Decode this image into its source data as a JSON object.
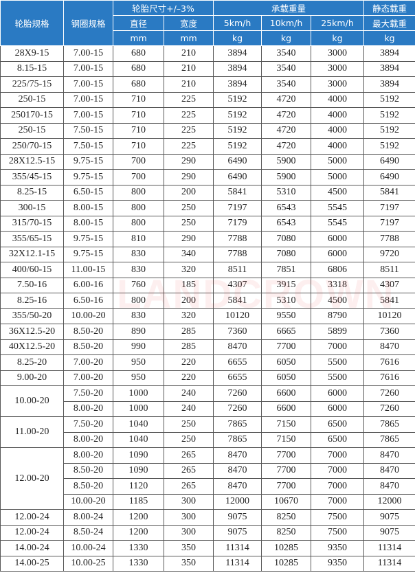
{
  "header": {
    "tire_spec": "轮胎规格",
    "rim_spec": "钢圈规格",
    "tire_size": "轮胎尺寸+/–3%",
    "load_capacity": "承载重量",
    "static_load": "静态载重",
    "diameter": "直径",
    "width": "宽度",
    "speed_5": "5km/h",
    "speed_10": "10km/h",
    "speed_25": "25km/h",
    "max_load": "最大载重",
    "unit_mm_1": "mm",
    "unit_mm_2": "mm",
    "unit_kg_1": "kg",
    "unit_kg_2": "kg",
    "unit_kg_3": "kg",
    "unit_kg_4": "kg"
  },
  "watermark": "LANDCROWN",
  "colors": {
    "header_bg": "#2a7ac3",
    "header_text": "#ffffff"
  },
  "groups": [
    {
      "tire": "28X9-15",
      "variants": [
        [
          "7.00-15",
          "680",
          "210",
          "3894",
          "3540",
          "3000",
          "3894"
        ]
      ]
    },
    {
      "tire": "8.15-15",
      "variants": [
        [
          "7.00-15",
          "680",
          "210",
          "3894",
          "3540",
          "3000",
          "3894"
        ]
      ]
    },
    {
      "tire": "225/75-15",
      "variants": [
        [
          "7.00-15",
          "680",
          "210",
          "3894",
          "3540",
          "3000",
          "3894"
        ]
      ]
    },
    {
      "tire": "250-15",
      "variants": [
        [
          "7.00-15",
          "710",
          "225",
          "5192",
          "4720",
          "4000",
          "5192"
        ]
      ]
    },
    {
      "tire": "250170-15",
      "variants": [
        [
          "7.00-15",
          "710",
          "225",
          "5192",
          "4720",
          "4000",
          "5192"
        ]
      ]
    },
    {
      "tire": "250-15",
      "variants": [
        [
          "7.50-15",
          "710",
          "225",
          "5192",
          "4720",
          "4000",
          "5192"
        ]
      ]
    },
    {
      "tire": "250/70-15",
      "variants": [
        [
          "7.50-15",
          "710",
          "225",
          "5192",
          "4720",
          "4000",
          "5192"
        ]
      ]
    },
    {
      "tire": "28X12.5-15",
      "variants": [
        [
          "9.75-15",
          "700",
          "290",
          "6490",
          "5900",
          "5000",
          "6490"
        ]
      ]
    },
    {
      "tire": "355/45-15",
      "variants": [
        [
          "9.75-15",
          "700",
          "290",
          "6490",
          "5900",
          "5000",
          "6490"
        ]
      ]
    },
    {
      "tire": "8.25-15",
      "variants": [
        [
          "6.50-15",
          "800",
          "200",
          "5841",
          "5310",
          "4500",
          "5841"
        ]
      ]
    },
    {
      "tire": "300-15",
      "variants": [
        [
          "8.00-15",
          "800",
          "250",
          "7197",
          "6543",
          "5545",
          "7197"
        ]
      ]
    },
    {
      "tire": "315/70-15",
      "variants": [
        [
          "8.00-15",
          "800",
          "250",
          "7179",
          "6543",
          "5545",
          "7197"
        ]
      ]
    },
    {
      "tire": "355/65-15",
      "variants": [
        [
          "9.75-15",
          "810",
          "290",
          "7788",
          "7080",
          "6000",
          "7788"
        ]
      ]
    },
    {
      "tire": "32X12.1-15",
      "variants": [
        [
          "9.75-15",
          "830",
          "340",
          "7788",
          "7080",
          "6000",
          "9720"
        ]
      ]
    },
    {
      "tire": "400/60-15",
      "variants": [
        [
          "11.00-15",
          "830",
          "320",
          "8511",
          "7851",
          "6806",
          "8511"
        ]
      ]
    },
    {
      "tire": "7.50-16",
      "variants": [
        [
          "6.00-16",
          "760",
          "185",
          "4307",
          "3915",
          "3318",
          "4307"
        ]
      ]
    },
    {
      "tire": "8.25-16",
      "variants": [
        [
          "6.50-16",
          "800",
          "200",
          "5841",
          "5310",
          "4500",
          "5841"
        ]
      ]
    },
    {
      "tire": "355/50-20",
      "variants": [
        [
          "10.00-20",
          "830",
          "320",
          "10120",
          "9550",
          "8790",
          "10120"
        ]
      ]
    },
    {
      "tire": "36X12.5-20",
      "variants": [
        [
          "8.50-20",
          "890",
          "285",
          "7360",
          "6665",
          "5899",
          "7360"
        ]
      ]
    },
    {
      "tire": "40X12.5-20",
      "variants": [
        [
          "8.50-20",
          "990",
          "285",
          "8470",
          "7700",
          "7000",
          "8470"
        ]
      ]
    },
    {
      "tire": "8.25-20",
      "variants": [
        [
          "7.00-20",
          "950",
          "220",
          "6655",
          "6050",
          "5500",
          "7616"
        ]
      ]
    },
    {
      "tire": "9.00-20",
      "variants": [
        [
          "7.00-20",
          "950",
          "220",
          "6655",
          "6050",
          "5500",
          "7616"
        ]
      ]
    },
    {
      "tire": "10.00-20",
      "variants": [
        [
          "7.50-20",
          "1000",
          "240",
          "7260",
          "6600",
          "6000",
          "7260"
        ],
        [
          "8.00-20",
          "1000",
          "240",
          "7260",
          "6600",
          "6000",
          "7260"
        ]
      ]
    },
    {
      "tire": "11.00-20",
      "variants": [
        [
          "7.50-20",
          "1040",
          "250",
          "7865",
          "7150",
          "6500",
          "7865"
        ],
        [
          "8.00-20",
          "1040",
          "250",
          "7865",
          "7150",
          "6500",
          "7865"
        ]
      ]
    },
    {
      "tire": "12.00-20",
      "variants": [
        [
          "8.00-20",
          "1090",
          "265",
          "8470",
          "7700",
          "7000",
          "8470"
        ],
        [
          "8.50-20",
          "1090",
          "265",
          "8470",
          "7700",
          "7000",
          "8470"
        ],
        [
          "8.50-20",
          "1120",
          "265",
          "8470",
          "7700",
          "7000",
          "8470"
        ],
        [
          "10.00-20",
          "1185",
          "300",
          "12000",
          "10670",
          "7000",
          "12000"
        ]
      ]
    },
    {
      "tire": "12.00-24",
      "variants": [
        [
          "8.00-24",
          "1200",
          "300",
          "9075",
          "8250",
          "7500",
          "9075"
        ]
      ]
    },
    {
      "tire": "12.00-24",
      "variants": [
        [
          "8.50-24",
          "1200",
          "300",
          "9075",
          "8250",
          "7500",
          "9075"
        ]
      ]
    },
    {
      "tire": "14.00-24",
      "variants": [
        [
          "10.00-24",
          "1330",
          "350",
          "11314",
          "10285",
          "9350",
          "11314"
        ]
      ]
    },
    {
      "tire": "14.00-25",
      "variants": [
        [
          "10.00-25",
          "1330",
          "350",
          "11314",
          "10285",
          "9350",
          "11314"
        ]
      ]
    }
  ]
}
